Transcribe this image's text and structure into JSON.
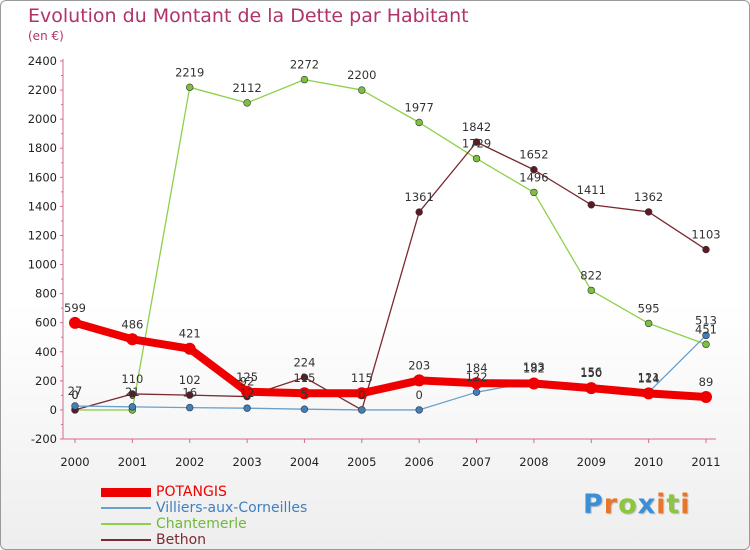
{
  "title": "Evolution du Montant de la Dette par Habitant",
  "subtitle": "(en €)",
  "logo": {
    "text": "ProxĀiti",
    "letters": [
      {
        "ch": "P",
        "color": "#3b8fd6"
      },
      {
        "ch": "r",
        "color": "#e8762a"
      },
      {
        "ch": "o",
        "color": "#8cc63f"
      },
      {
        "ch": "x",
        "color": "#3b8fd6"
      },
      {
        "ch": "i",
        "color": "#e8762a"
      },
      {
        "ch": "t",
        "color": "#8cc63f"
      },
      {
        "ch": "i",
        "color": "#e8762a"
      }
    ]
  },
  "chart_data": {
    "type": "line",
    "x": [
      "2000",
      "2001",
      "2002",
      "2003",
      "2004",
      "2005",
      "2006",
      "2007",
      "2008",
      "2009",
      "2010",
      "2011"
    ],
    "ylim": [
      -200,
      2400
    ],
    "yticks": [
      -200,
      0,
      200,
      400,
      600,
      800,
      1000,
      1200,
      1400,
      1600,
      1800,
      2000,
      2200,
      2400
    ],
    "grid": false,
    "legend_position": "bottom-left",
    "series": [
      {
        "name": "Chantemerle",
        "color": "#8ed04a",
        "marker": "#7cc040",
        "width": 1.3,
        "values": [
          0,
          0,
          2219,
          2112,
          2272,
          2200,
          1977,
          1729,
          1496,
          822,
          595,
          451
        ],
        "labels": [
          "0",
          "0",
          "2219",
          "2112",
          "2272",
          "2200",
          "1977",
          "1729",
          "1496",
          "822",
          "595",
          "451"
        ]
      },
      {
        "name": "Bethon",
        "color": "#7a2a30",
        "marker": "#5e1a20",
        "width": 1.3,
        "values": [
          0,
          110,
          102,
          92,
          224,
          0,
          1361,
          1842,
          1652,
          1411,
          1362,
          1103
        ],
        "labels": [
          "0",
          "110",
          "102",
          "92",
          "224",
          "0",
          "1361",
          "1842",
          "1652",
          "1411",
          "1362",
          "1103"
        ]
      },
      {
        "name": "Villiers-aux-Corneilles",
        "color": "#6aa0cc",
        "marker": "#3f7fbf",
        "width": 1.3,
        "values": [
          27,
          21,
          16,
          12,
          5,
          0,
          0,
          122,
          193,
          156,
          121,
          513
        ],
        "labels": [
          "27",
          "21",
          "16",
          "12",
          "5",
          "0",
          "0",
          "122",
          "193",
          "156",
          "121",
          "513"
        ]
      },
      {
        "name": "POTANGIS",
        "color": "#ee0000",
        "marker": "#ee0000",
        "width": 8,
        "values": [
          599,
          486,
          421,
          125,
          115,
          115,
          203,
          184,
          182,
          150,
          114,
          89
        ],
        "labels": [
          "599",
          "486",
          "421",
          "125",
          "115",
          "115",
          "203",
          "184",
          "182",
          "150",
          "114",
          "89"
        ]
      }
    ],
    "legend": [
      "POTANGIS",
      "Villiers-aux-Corneilles",
      "Chantemerle",
      "Bethon"
    ]
  }
}
